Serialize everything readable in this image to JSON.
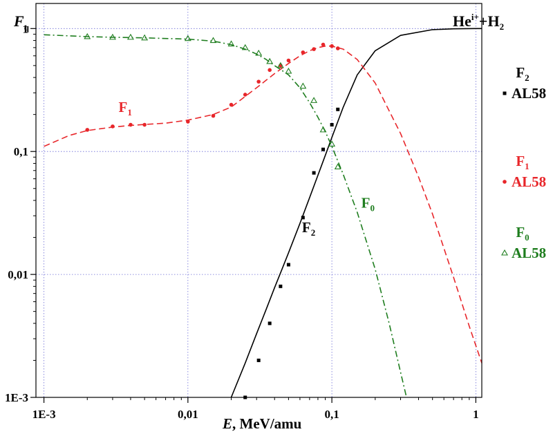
{
  "chart_data": {
    "type": "line",
    "title": "He^{i+}+H_2",
    "title_main": "He",
    "title_sup": "i+",
    "title_plus": "+H",
    "title_sub": "2",
    "xlabel_italic": "E",
    "xlabel_rest": ", MeV/amu",
    "ylabel_main": "F",
    "ylabel_sub": "q",
    "x_scale": "log",
    "y_scale": "log",
    "xlim": [
      0.00088,
      1.1
    ],
    "ylim": [
      0.001,
      1.6
    ],
    "grid": true,
    "x_ticks": [
      0.001,
      0.01,
      0.1,
      1
    ],
    "x_tick_labels": [
      "1E-3",
      "0,01",
      "0,1",
      "1"
    ],
    "y_ticks": [
      0.001,
      0.01,
      0.1,
      1
    ],
    "y_tick_labels": [
      "1E-3",
      "0,01",
      "0,1",
      "1"
    ],
    "series": [
      {
        "name": "F2",
        "label_main": "F",
        "label_sub": "2",
        "color": "#000000",
        "style": "solid",
        "x": [
          0.02,
          0.025,
          0.03,
          0.035,
          0.04,
          0.045,
          0.05,
          0.06,
          0.07,
          0.08,
          0.09,
          0.1,
          0.12,
          0.15,
          0.2,
          0.3,
          0.5,
          0.7,
          1.0,
          1.1
        ],
        "y": [
          0.001,
          0.0019,
          0.0033,
          0.0052,
          0.0078,
          0.011,
          0.015,
          0.026,
          0.042,
          0.064,
          0.093,
          0.13,
          0.23,
          0.42,
          0.66,
          0.88,
          0.98,
          0.995,
          1.0,
          1.0
        ]
      },
      {
        "name": "F1",
        "label_main": "F",
        "label_sub": "1",
        "color": "#e8262a",
        "style": "dashed",
        "x": [
          0.001,
          0.0015,
          0.002,
          0.003,
          0.004,
          0.005,
          0.007,
          0.01,
          0.015,
          0.02,
          0.03,
          0.04,
          0.05,
          0.06,
          0.07,
          0.08,
          0.09,
          0.1,
          0.12,
          0.15,
          0.2,
          0.3,
          0.4,
          0.5,
          0.7,
          0.9,
          1.1
        ],
        "y": [
          0.11,
          0.135,
          0.148,
          0.158,
          0.163,
          0.166,
          0.17,
          0.18,
          0.2,
          0.23,
          0.33,
          0.43,
          0.52,
          0.6,
          0.66,
          0.7,
          0.72,
          0.72,
          0.68,
          0.56,
          0.36,
          0.14,
          0.062,
          0.031,
          0.0095,
          0.0038,
          0.0019
        ]
      },
      {
        "name": "F0",
        "label_main": "F",
        "label_sub": "0",
        "color": "#1e7d1e",
        "style": "dashdot",
        "x": [
          0.001,
          0.002,
          0.003,
          0.005,
          0.01,
          0.015,
          0.02,
          0.025,
          0.03,
          0.035,
          0.04,
          0.05,
          0.06,
          0.07,
          0.08,
          0.09,
          0.1,
          0.12,
          0.15,
          0.2,
          0.25,
          0.3,
          0.33
        ],
        "y": [
          0.89,
          0.86,
          0.85,
          0.84,
          0.82,
          0.79,
          0.74,
          0.68,
          0.62,
          0.56,
          0.5,
          0.42,
          0.33,
          0.25,
          0.19,
          0.145,
          0.11,
          0.065,
          0.032,
          0.011,
          0.004,
          0.0016,
          0.001
        ]
      }
    ],
    "points": [
      {
        "name": "F2 AL58",
        "marker": "square",
        "color": "#000000",
        "x": [
          0.025,
          0.031,
          0.037,
          0.044,
          0.05,
          0.063,
          0.075,
          0.087,
          0.1,
          0.11
        ],
        "y": [
          0.001,
          0.002,
          0.004,
          0.008,
          0.012,
          0.029,
          0.067,
          0.104,
          0.165,
          0.22
        ]
      },
      {
        "name": "F1 AL58",
        "marker": "circle",
        "color": "#e8262a",
        "x": [
          0.002,
          0.003,
          0.004,
          0.005,
          0.01,
          0.015,
          0.02,
          0.025,
          0.031,
          0.037,
          0.044,
          0.05,
          0.063,
          0.075,
          0.087,
          0.1,
          0.11
        ],
        "y": [
          0.15,
          0.16,
          0.165,
          0.165,
          0.175,
          0.195,
          0.24,
          0.29,
          0.37,
          0.46,
          0.5,
          0.55,
          0.64,
          0.68,
          0.74,
          0.72,
          0.69
        ]
      },
      {
        "name": "F0 AL58",
        "marker": "triangle",
        "color": "#1e7d1e",
        "x": [
          0.002,
          0.003,
          0.004,
          0.005,
          0.01,
          0.015,
          0.02,
          0.025,
          0.031,
          0.037,
          0.044,
          0.05,
          0.063,
          0.075,
          0.087,
          0.1,
          0.11
        ],
        "y": [
          0.86,
          0.85,
          0.85,
          0.84,
          0.83,
          0.8,
          0.75,
          0.7,
          0.63,
          0.54,
          0.5,
          0.45,
          0.34,
          0.26,
          0.15,
          0.115,
          0.075
        ]
      }
    ],
    "annotations": [
      {
        "series": "F1",
        "main": "F",
        "sub": "1",
        "color": "#e8262a",
        "at_x": 0.0033,
        "at_y": 0.21
      },
      {
        "series": "F2",
        "main": "F",
        "sub": "2",
        "color": "#000000",
        "at_x": 0.062,
        "at_y": 0.022
      },
      {
        "series": "F0",
        "main": "F",
        "sub": "0",
        "color": "#1e7d1e",
        "at_x": 0.16,
        "at_y": 0.035
      }
    ],
    "legend": {
      "placement": "right",
      "entries": [
        {
          "main": "F",
          "sub": "2",
          "marker": "square",
          "data_label": "AL58",
          "color": "#000000"
        },
        {
          "main": "F",
          "sub": "1",
          "marker": "circle",
          "data_label": "AL58",
          "color": "#e8262a"
        },
        {
          "main": "F",
          "sub": "0",
          "marker": "triangle",
          "data_label": "AL58",
          "color": "#1e7d1e"
        }
      ]
    }
  }
}
